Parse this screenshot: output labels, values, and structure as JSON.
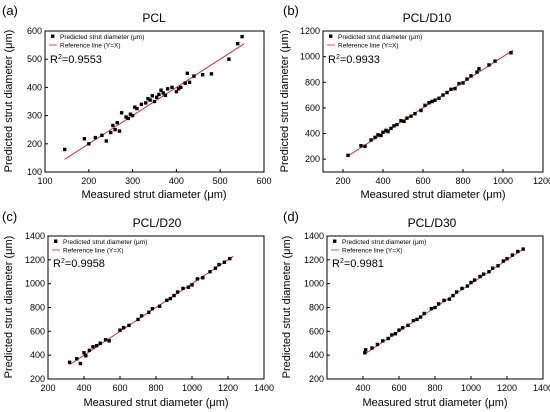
{
  "figure": {
    "marker_color": "#000000",
    "reference_line_color": "#e02020"
  },
  "chart_data": [
    {
      "type": "scatter",
      "panel_label": "(a)",
      "title": "PCL",
      "xlabel": "Measured strut diameter (μm)",
      "ylabel": "Predicted strut diameter (μm)",
      "xlim": [
        100,
        600
      ],
      "ylim": [
        100,
        600
      ],
      "xticks": [
        100,
        200,
        300,
        400,
        500,
        600
      ],
      "yticks": [
        100,
        200,
        300,
        400,
        500,
        600
      ],
      "r2_label": "R",
      "r2_sup": "2",
      "r2_value": "=0.9553",
      "legend": [
        {
          "name": "Predicted strut diameter (μm)",
          "kind": "marker"
        },
        {
          "name": "Reference line (Y=X)",
          "kind": "line"
        }
      ],
      "reference_line": [
        145,
        555
      ],
      "points": [
        [
          145,
          180
        ],
        [
          190,
          218
        ],
        [
          200,
          200
        ],
        [
          215,
          222
        ],
        [
          230,
          230
        ],
        [
          240,
          210
        ],
        [
          250,
          240
        ],
        [
          255,
          265
        ],
        [
          260,
          250
        ],
        [
          265,
          275
        ],
        [
          270,
          245
        ],
        [
          275,
          310
        ],
        [
          285,
          295
        ],
        [
          290,
          290
        ],
        [
          295,
          305
        ],
        [
          300,
          300
        ],
        [
          305,
          330
        ],
        [
          310,
          325
        ],
        [
          320,
          340
        ],
        [
          330,
          345
        ],
        [
          335,
          360
        ],
        [
          340,
          355
        ],
        [
          345,
          370
        ],
        [
          350,
          350
        ],
        [
          355,
          365
        ],
        [
          360,
          375
        ],
        [
          365,
          390
        ],
        [
          370,
          380
        ],
        [
          375,
          372
        ],
        [
          380,
          395
        ],
        [
          390,
          400
        ],
        [
          400,
          385
        ],
        [
          405,
          395
        ],
        [
          410,
          400
        ],
        [
          420,
          415
        ],
        [
          425,
          450
        ],
        [
          430,
          418
        ],
        [
          440,
          440
        ],
        [
          460,
          445
        ],
        [
          480,
          448
        ],
        [
          520,
          500
        ],
        [
          540,
          555
        ],
        [
          550,
          580
        ]
      ]
    },
    {
      "type": "scatter",
      "panel_label": "(b)",
      "title": "PCL/D10",
      "xlabel": "Measured strut diameter (μm)",
      "ylabel": "Predicted strut diameter (μm)",
      "xlim": [
        100,
        1200
      ],
      "ylim": [
        100,
        1200
      ],
      "xticks": [
        200,
        400,
        600,
        800,
        1000,
        1200
      ],
      "yticks": [
        200,
        400,
        600,
        800,
        1000,
        1200
      ],
      "r2_label": "R",
      "r2_sup": "2",
      "r2_value": "=0.9933",
      "legend": [
        {
          "name": "Predicted strut diameter (μm)",
          "kind": "marker"
        },
        {
          "name": "Reference line (Y=X)",
          "kind": "line"
        }
      ],
      "reference_line": [
        220,
        1050
      ],
      "points": [
        [
          225,
          230
        ],
        [
          290,
          305
        ],
        [
          310,
          300
        ],
        [
          340,
          350
        ],
        [
          360,
          370
        ],
        [
          375,
          390
        ],
        [
          390,
          385
        ],
        [
          400,
          410
        ],
        [
          415,
          425
        ],
        [
          425,
          415
        ],
        [
          440,
          440
        ],
        [
          455,
          460
        ],
        [
          470,
          470
        ],
        [
          490,
          500
        ],
        [
          505,
          495
        ],
        [
          520,
          520
        ],
        [
          540,
          535
        ],
        [
          560,
          555
        ],
        [
          590,
          580
        ],
        [
          610,
          620
        ],
        [
          630,
          640
        ],
        [
          645,
          650
        ],
        [
          660,
          660
        ],
        [
          680,
          675
        ],
        [
          700,
          700
        ],
        [
          720,
          720
        ],
        [
          740,
          745
        ],
        [
          760,
          750
        ],
        [
          780,
          790
        ],
        [
          800,
          795
        ],
        [
          820,
          825
        ],
        [
          840,
          850
        ],
        [
          870,
          880
        ],
        [
          880,
          905
        ],
        [
          930,
          935
        ],
        [
          960,
          965
        ],
        [
          1040,
          1030
        ]
      ]
    },
    {
      "type": "scatter",
      "panel_label": "(c)",
      "title": "PCL/D20",
      "xlabel": "Measured strut diameter (μm)",
      "ylabel": "Predicted strut diameter (μm)",
      "xlim": [
        200,
        1400
      ],
      "ylim": [
        200,
        1400
      ],
      "xticks": [
        200,
        400,
        600,
        800,
        1000,
        1200,
        1400
      ],
      "yticks": [
        200,
        400,
        600,
        800,
        1000,
        1200,
        1400
      ],
      "r2_label": "R",
      "r2_sup": "2",
      "r2_value": "=0.9958",
      "legend": [
        {
          "name": "Predicted strut diameter (μm)",
          "kind": "marker"
        },
        {
          "name": "Reference line (Y=X)",
          "kind": "line"
        }
      ],
      "reference_line": [
        320,
        1230
      ],
      "points": [
        [
          320,
          340
        ],
        [
          360,
          370
        ],
        [
          380,
          330
        ],
        [
          400,
          420
        ],
        [
          410,
          395
        ],
        [
          430,
          440
        ],
        [
          450,
          470
        ],
        [
          470,
          480
        ],
        [
          490,
          500
        ],
        [
          520,
          530
        ],
        [
          540,
          520
        ],
        [
          600,
          610
        ],
        [
          620,
          630
        ],
        [
          650,
          650
        ],
        [
          700,
          700
        ],
        [
          720,
          730
        ],
        [
          760,
          760
        ],
        [
          780,
          790
        ],
        [
          820,
          810
        ],
        [
          860,
          860
        ],
        [
          880,
          875
        ],
        [
          900,
          900
        ],
        [
          920,
          930
        ],
        [
          950,
          960
        ],
        [
          980,
          970
        ],
        [
          1000,
          990
        ],
        [
          1030,
          1040
        ],
        [
          1060,
          1050
        ],
        [
          1100,
          1100
        ],
        [
          1130,
          1130
        ],
        [
          1150,
          1160
        ],
        [
          1180,
          1180
        ],
        [
          1210,
          1210
        ]
      ]
    },
    {
      "type": "scatter",
      "panel_label": "(d)",
      "title": "PCL/D30",
      "xlabel": "Measured strut diameter (μm)",
      "ylabel": "Predicted strut diameter (μm)",
      "xlim": [
        200,
        1400
      ],
      "ylim": [
        200,
        1400
      ],
      "xticks": [
        400,
        600,
        800,
        1000,
        1200,
        1400
      ],
      "yticks": [
        200,
        400,
        600,
        800,
        1000,
        1200,
        1400
      ],
      "r2_label": "R",
      "r2_sup": "2",
      "r2_value": "=0.9981",
      "legend": [
        {
          "name": "Predicted strut diameter (μm)",
          "kind": "marker"
        },
        {
          "name": "Reference line (Y=X)",
          "kind": "line"
        }
      ],
      "reference_line": [
        410,
        1290
      ],
      "points": [
        [
          410,
          420
        ],
        [
          415,
          445
        ],
        [
          450,
          460
        ],
        [
          480,
          490
        ],
        [
          510,
          520
        ],
        [
          540,
          540
        ],
        [
          560,
          570
        ],
        [
          580,
          580
        ],
        [
          600,
          610
        ],
        [
          620,
          630
        ],
        [
          650,
          650
        ],
        [
          680,
          690
        ],
        [
          700,
          700
        ],
        [
          720,
          720
        ],
        [
          740,
          750
        ],
        [
          780,
          790
        ],
        [
          800,
          800
        ],
        [
          820,
          830
        ],
        [
          850,
          860
        ],
        [
          880,
          870
        ],
        [
          900,
          900
        ],
        [
          920,
          930
        ],
        [
          950,
          960
        ],
        [
          980,
          980
        ],
        [
          1000,
          1010
        ],
        [
          1020,
          1030
        ],
        [
          1050,
          1060
        ],
        [
          1070,
          1080
        ],
        [
          1100,
          1100
        ],
        [
          1120,
          1130
        ],
        [
          1150,
          1150
        ],
        [
          1180,
          1190
        ],
        [
          1200,
          1210
        ],
        [
          1230,
          1240
        ],
        [
          1260,
          1270
        ],
        [
          1290,
          1290
        ]
      ]
    }
  ]
}
